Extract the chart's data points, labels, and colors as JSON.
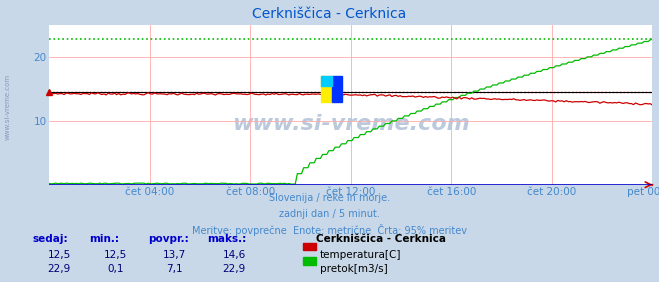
{
  "title": "Cerkniščica - Cerknica",
  "title_color": "#0055cc",
  "bg_color": "#c8d8e8",
  "plot_bg_color": "#ffffff",
  "grid_color": "#ffaaaa",
  "watermark_text": "www.si-vreme.com",
  "subtitle_lines": [
    "Slovenija / reke in morje.",
    "zadnji dan / 5 minut.",
    "Meritve: povprečne  Enote: metrične  Črta: 95% meritev"
  ],
  "subtitle_color": "#4488cc",
  "xlabel_ticks": [
    "čet 04:00",
    "čet 08:00",
    "čet 12:00",
    "čet 16:00",
    "čet 20:00",
    "pet 00:00"
  ],
  "xlabel_tick_fracs": [
    0.1667,
    0.3333,
    0.5,
    0.6667,
    0.8333,
    1.0
  ],
  "ylim": [
    0,
    25
  ],
  "yticks": [
    10,
    20
  ],
  "temp_color": "#cc0000",
  "flow_color": "#00bb00",
  "temp_95_color": "#cc0000",
  "flow_95_color": "#00bb00",
  "black_ref_color": "#000000",
  "blue_axis_color": "#0000cc",
  "temp_95": 14.6,
  "flow_95": 22.9,
  "temp_ref": 14.5,
  "sidebar_text": "www.si-vreme.com",
  "sidebar_color": "#8899bb",
  "table_headers": [
    "sedaj:",
    "min.:",
    "povpr.:",
    "maks.:"
  ],
  "table_header_color": "#0000cc",
  "table_values_color": "#000077",
  "legend_title": "Cerkniščica - Cerknica",
  "legend_items": [
    "temperatura[C]",
    "pretok[m3/s]"
  ],
  "legend_colors": [
    "#cc0000",
    "#00bb00"
  ],
  "temp_sedaj": 12.5,
  "temp_min": 12.5,
  "temp_avg": 13.7,
  "temp_max": 14.6,
  "flow_sedaj": 22.9,
  "flow_min": 0.1,
  "flow_avg": 7.1,
  "flow_max": 22.9
}
